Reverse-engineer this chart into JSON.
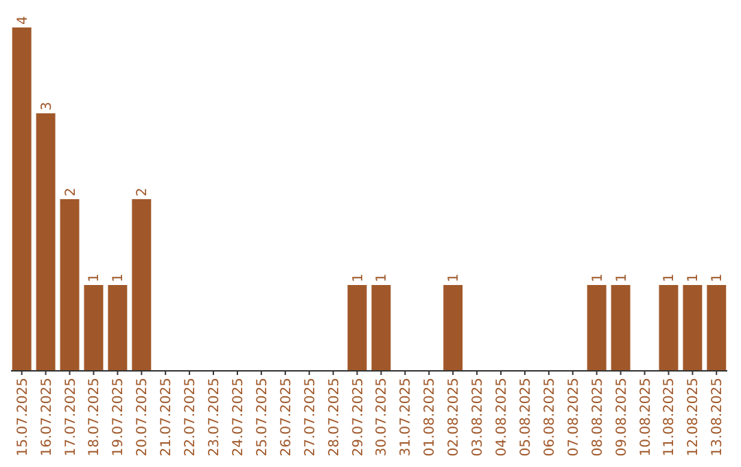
{
  "chart_data": {
    "type": "bar",
    "categories": [
      "15.07.2025",
      "16.07.2025",
      "17.07.2025",
      "18.07.2025",
      "19.07.2025",
      "20.07.2025",
      "21.07.2025",
      "22.07.2025",
      "23.07.2025",
      "24.07.2025",
      "25.07.2025",
      "26.07.2025",
      "27.07.2025",
      "28.07.2025",
      "29.07.2025",
      "30.07.2025",
      "31.07.2025",
      "01.08.2025",
      "02.08.2025",
      "03.08.2025",
      "04.08.2025",
      "05.08.2025",
      "06.08.2025",
      "07.08.2025",
      "08.08.2025",
      "09.08.2025",
      "10.08.2025",
      "11.08.2025",
      "12.08.2025",
      "13.08.2025"
    ],
    "values": [
      4,
      3,
      2,
      1,
      1,
      2,
      0,
      0,
      0,
      0,
      0,
      0,
      0,
      0,
      1,
      1,
      0,
      0,
      1,
      0,
      0,
      0,
      0,
      0,
      1,
      1,
      0,
      1,
      1,
      1
    ],
    "value_labels": [
      "4",
      "3",
      "2",
      "1",
      "1",
      "2",
      null,
      null,
      null,
      null,
      null,
      null,
      null,
      null,
      "1",
      "1",
      null,
      null,
      "1",
      null,
      null,
      null,
      null,
      null,
      "1",
      "1",
      null,
      "1",
      "1",
      "1"
    ],
    "color": "#a0582a"
  }
}
